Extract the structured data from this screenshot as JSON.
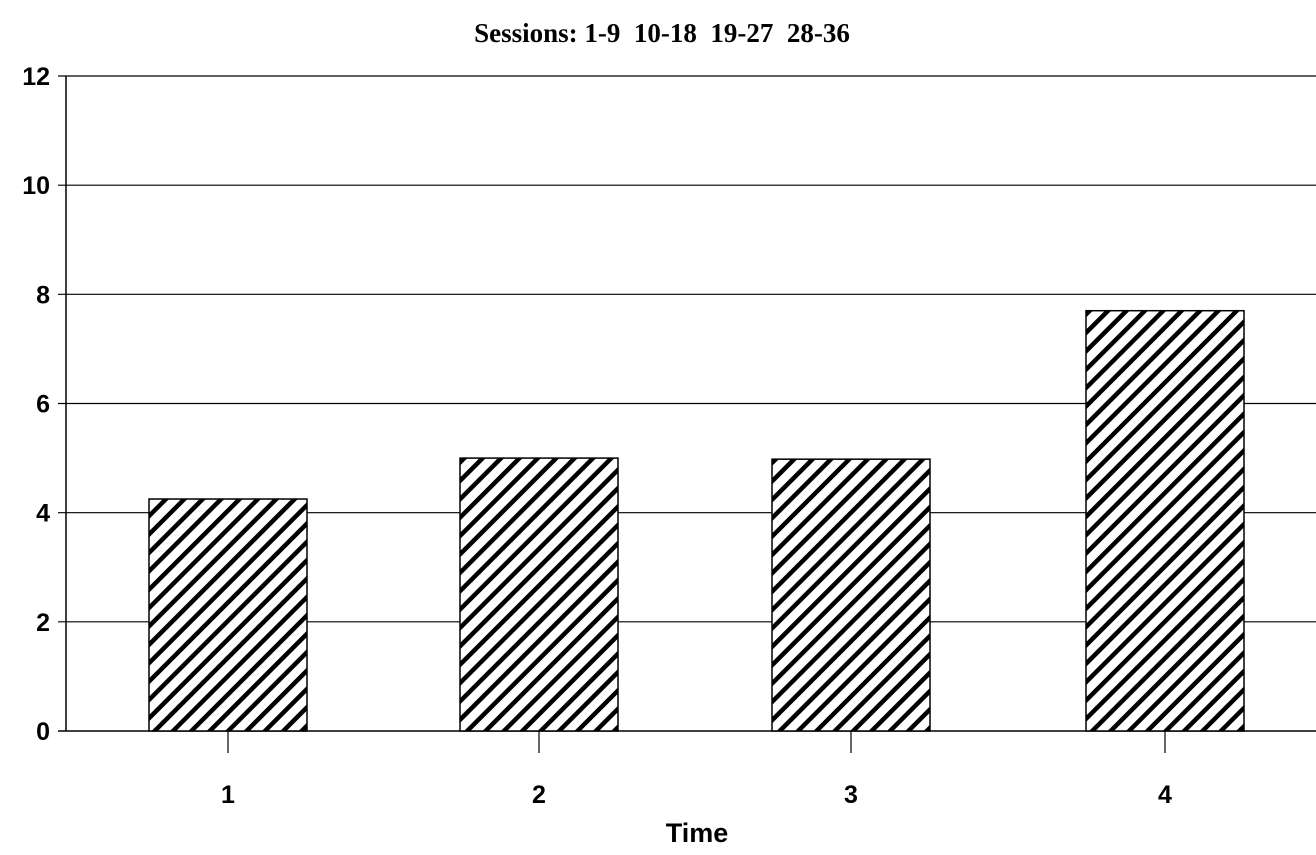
{
  "chart_data": {
    "type": "bar",
    "title": "Sessions: 1-9  10-18  19-27  28-36",
    "xlabel": "Time",
    "ylabel": "",
    "categories": [
      "1",
      "2",
      "3",
      "4"
    ],
    "values": [
      4.25,
      5.0,
      4.98,
      7.7
    ],
    "ylim": [
      0,
      12
    ],
    "yticks": [
      "0",
      "2",
      "4",
      "6",
      "8",
      "10",
      "12"
    ],
    "grid": "horizontal",
    "legend": "none",
    "bar_fill": "diagonal-hatch",
    "colors": {
      "bar_stroke": "#000000",
      "hatch": "#000000",
      "grid": "#000000",
      "background": "#ffffff"
    }
  }
}
